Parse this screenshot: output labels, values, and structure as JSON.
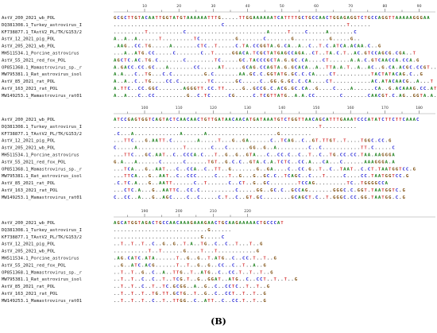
{
  "panel_label": "(B)",
  "colors": {
    "A": "#1b7f1b",
    "C": "#2a2ad6",
    "G": "#7a4a0a",
    "T": "#d63a3a",
    "other": "#555555"
  },
  "blocks": [
    {
      "ruler": [
        "10",
        "20",
        "30",
        "40",
        "50",
        "60",
        "70",
        "80",
        "90"
      ],
      "rows": [
        {
          "name": "AstV_200_2021_wb_POL",
          "seq": "GCGCTTGTACAATTGGTATGTAAAAAATTTG.....TTGGAAAAAATCATTTTGCTGCCAACTGGAGAGGTCTGCCAGGTTAAAAAGGGAA"
        },
        {
          "name": "DQ381308.1_Turkey_astrovirus_I",
          "seq": "...............................C...................................T......"
        },
        {
          "name": "KF738877.1_TAstV2_PL/TK/G153/2",
          "seq": ".........T..........C.......................A.....T....C.....A.......C"
        },
        {
          "name": "AstV_12_2021_pig_POL",
          "seq": "A..A..A......T.........TC..........G.......C.......G..........G.....G.."
        },
        {
          "name": "AstV_205_2021_wb_POL",
          "seq": ".AAG..CC.TG.....A.......CTC..T.....C.TA.CCGGTA.G.CA..A..C..T.C.ATCA.ACAA.C..G"
        },
        {
          "name": "MH511534.1_Porcine_astrovirus",
          "seq": "...A..ATG.CC.....C.......C..T.....GGACA.TCGCTATGAGCCAGA..CT..TA.C.T..AC.GTCCAGCG.CGA..T"
        },
        {
          "name": "AstV_55_2021_red_fox_POL",
          "seq": "AGCTC.AC.TG.C.......C........TC.....GC.TACCCGCTA.G.GC.CA....CT......A.A.C.GTCAACCA.CCA.G"
        },
        {
          "name": "OP851368.1_Mamastrovirus_sp._r",
          "seq": "A.GACC.CC.GC...A.......CC.....AT.....GCAG.CCAGTA.G.GCACA..A..TTA.A.T..A..AC..G.CA.ACGC.CCGT..G"
        },
        {
          "name": "MW795381.1_Rat_astrovirus_isol",
          "seq": "A.A...C..TG...C.C.........G.C.......AA.GC.C.GGTATG.GC.C.CA....CT..........TACTATACAG.C..G"
        },
        {
          "name": "AstV_85_2021_rat_POL",
          "seq": "A..A..C..TG....CC.C........TC......GC.....C..GG.G.GC.C.CA....CT...........AC.ATACAACG..A...T"
        },
        {
          "name": "AstV_163_2021_rat_POL",
          "seq": "A.TTC..CC.GGC.......AGGGTT.CC.TT.....G..GCCG.C.ACG.GC.CA..G....C....A......CA..G.ACAAAG.CC.AT"
        },
        {
          "name": "MW149253.1_Mamastrovirus_rat01",
          "seq": "A..A...C..CC.........G..C.TC.....CG.....C.TCGTTATG..A.A.CC.......C.......CAACGT.C.AG..GGTA.A.A"
        }
      ]
    },
    {
      "ruler": [
        "100",
        "110",
        "120",
        "130",
        "140",
        "150",
        "160",
        "170",
        "180"
      ],
      "rows": [
        {
          "name": "AstV_200_2021_wb_POL",
          "seq": "ATCCGAGTGGTCAGTACTCAACAACTGTTGATAACAACATGATAAATGTCTGGTTAACAGCATTTGAAATCCCATATCTTCTTCAAAC"
        },
        {
          "name": "DQ381308.1_Turkey_astrovirus_I",
          "seq": "...........................................................T.........."
        },
        {
          "name": "KF738877.1_TAstV2_PL/TK/G153/2",
          "seq": ".C...A.............A......A....................G........."
        },
        {
          "name": "AstV_12_2021_pig_POL",
          "seq": "...TTC...G.AATT.C.......A.....T...G..GA......C..TCAG..C..GT.TTGT..T....TGGC.CC.G"
        },
        {
          "name": "AstV_205_2021_wb_POL",
          "seq": "C.....A.............T.......C...C......GG..G..A.........C..C...........TT.C.....C"
        },
        {
          "name": "MH511534.1_Porcine_astrovirus",
          "seq": "...TTC...GC.AAT..C..CCCA.C...T..G..G..GTA...C..CC.C..C..T..C..TG.CC.CC.TAA.AAGGGA"
        },
        {
          "name": "AstV_55_2021_red_fox_POL",
          "seq": "G.A...A......C......C......TGT..G.C.C..GTA.C.A.TCTC..CC.A...CA...C......AAAGGGA.A"
        },
        {
          "name": "OP851368.1_Mamastrovirus_sp._r",
          "seq": "...TCA...G..AAT...C..CCA..C..TT..G.......G..GA....C..CC.G..T..C..TAAT..C.CT.TAATGGTCC.G"
        },
        {
          "name": "MW795381.1_Rat_astrovirus_isol",
          "seq": "...TTCA...G..AAT..C..CCC.....C...T..G...G..GC.C..TCAGC..C...T.....C....CC.TAATGGTCC.G"
        },
        {
          "name": "AstV_85_2021_rat_POL",
          "seq": ".C.TC.A...G..AATT......C..T......C..CT..G..GC........TCCAG.........TC..TGGGGCCA"
        },
        {
          "name": "AstV_163_2021_rat_POL",
          "seq": "...CTC.A...G..AATTC..CC.C..........C.....GG..GC.C..GCCAG.......GGGC.C.GGT.TAATGGTC.G"
        },
        {
          "name": "MW149253.1_Mamastrovirus_rat01",
          "seq": "C..CC..A...G..AGC....C..C.....C.T..C..GT.GC........GCAGCT.C..T.GGGC.CC.GG.TAATGG.C.G"
        }
      ]
    },
    {
      "ruler": [
        "190",
        "200",
        "210",
        "220"
      ],
      "rows": [
        {
          "name": "AstV_200_2021_wb_POL",
          "seq": "AGCATGGTAGACTGCCAACAAAGAAAGAACTGCAAGAAAAACTGCCCAT"
        },
        {
          "name": "DQ381308.1_Turkey_astrovirus_I",
          "seq": "...........................G......"
        },
        {
          "name": "KF738877.1_TAstV2_PL/TK/G153/2",
          "seq": ".........................G.....C"
        },
        {
          "name": "AstV_12_2021_pig_POL",
          "seq": "..T..T..T..C..G..G..T.A..TG..C..C..T...T..G"
        },
        {
          "name": "AstV_205_2021_wb_POL",
          "seq": "..........T..T......G....T...T...........G"
        },
        {
          "name": "MH511534.1_Porcine_astrovirus",
          "seq": ".AG.CATC.ATA......T..G..G..T.ATG..C..CC.T..T..G"
        },
        {
          "name": "AstV_55_2021_red_fox_POL",
          "seq": "..G..ATC.ACG......T..T..G..G..CC..C..T..A..G"
        },
        {
          "name": "OP851368.1_Mamastrovirus_sp._r",
          "seq": "..T..T..G..C..A..TTG..T..ATG..C..CC.T..T..T..G"
        },
        {
          "name": "MW795381.1_Rat_astrovirus_isol",
          "seq": "..T..T..C..C..T..TCG.T..G..GGAT..ATG..C..CCT..T..T..G"
        },
        {
          "name": "AstV_85_2021_rat_POL",
          "seq": "..T..T..C..T..TC.GCGG..A..G..C..CCTC..T..T..G"
        },
        {
          "name": "AstV_163_2021_rat_POL",
          "seq": "..T..T..T..TG.TT.GCTG..T..G..C..CCT..T..T..G"
        },
        {
          "name": "MW149253.1_Mamastrovirus_rat01",
          "seq": "..T..T..T..C..T..TTGG..C..ATT..C..CC.T..T..G"
        }
      ]
    }
  ]
}
